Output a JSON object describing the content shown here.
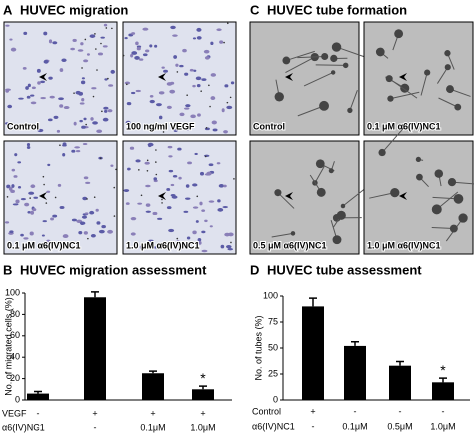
{
  "panels": [
    {
      "letter": "A",
      "title": "HUVEC migration",
      "images": [
        "Control",
        "100 ng/ml VEGF",
        "0.1 μM α6(IV)NC1",
        "1.0 μM α6(IV)NC1"
      ]
    },
    {
      "letter": "C",
      "title": "HUVEC tube formation",
      "images": [
        "Control",
        "0.1 μM α6(IV)NC1",
        "0.5 μM α6(IV)NC1",
        "1.0 μM α6(IV)NC1"
      ]
    }
  ],
  "chart_data": [
    {
      "type": "bar",
      "letter": "B",
      "title": "HUVEC migration assessment",
      "ylabel": "No. of migrated cells (%)",
      "ylim": [
        0,
        100
      ],
      "yticks": [
        0,
        20,
        40,
        60,
        80,
        100
      ],
      "values": [
        6,
        96,
        25,
        10
      ],
      "errors": [
        2,
        5,
        2,
        3
      ],
      "significance_labels": [
        null,
        null,
        null,
        "*"
      ],
      "color": "#000000",
      "condition_rows": [
        {
          "name": "VEGF",
          "labels": [
            "-",
            "+",
            "+",
            "+"
          ]
        },
        {
          "name": "α6(IV)NC1",
          "labels": [
            "-",
            "-",
            "0.1μM",
            "1.0μM"
          ]
        }
      ]
    },
    {
      "type": "bar",
      "letter": "D",
      "title": "HUVEC tube assessment",
      "ylabel": "No. of tubes (%)",
      "ylim": [
        0,
        100
      ],
      "yticks": [
        0,
        25,
        50,
        75,
        100
      ],
      "values": [
        90,
        52,
        33,
        17
      ],
      "errors": [
        8,
        4,
        4,
        4
      ],
      "significance_labels": [
        null,
        null,
        null,
        "*"
      ],
      "color": "#000000",
      "condition_rows": [
        {
          "name": "Control",
          "labels": [
            "+",
            "-",
            "-",
            "-"
          ]
        },
        {
          "name": "α6(IV)NC1",
          "labels": [
            "-",
            "0.1μM",
            "0.5μM",
            "1.0μM"
          ]
        }
      ]
    }
  ]
}
